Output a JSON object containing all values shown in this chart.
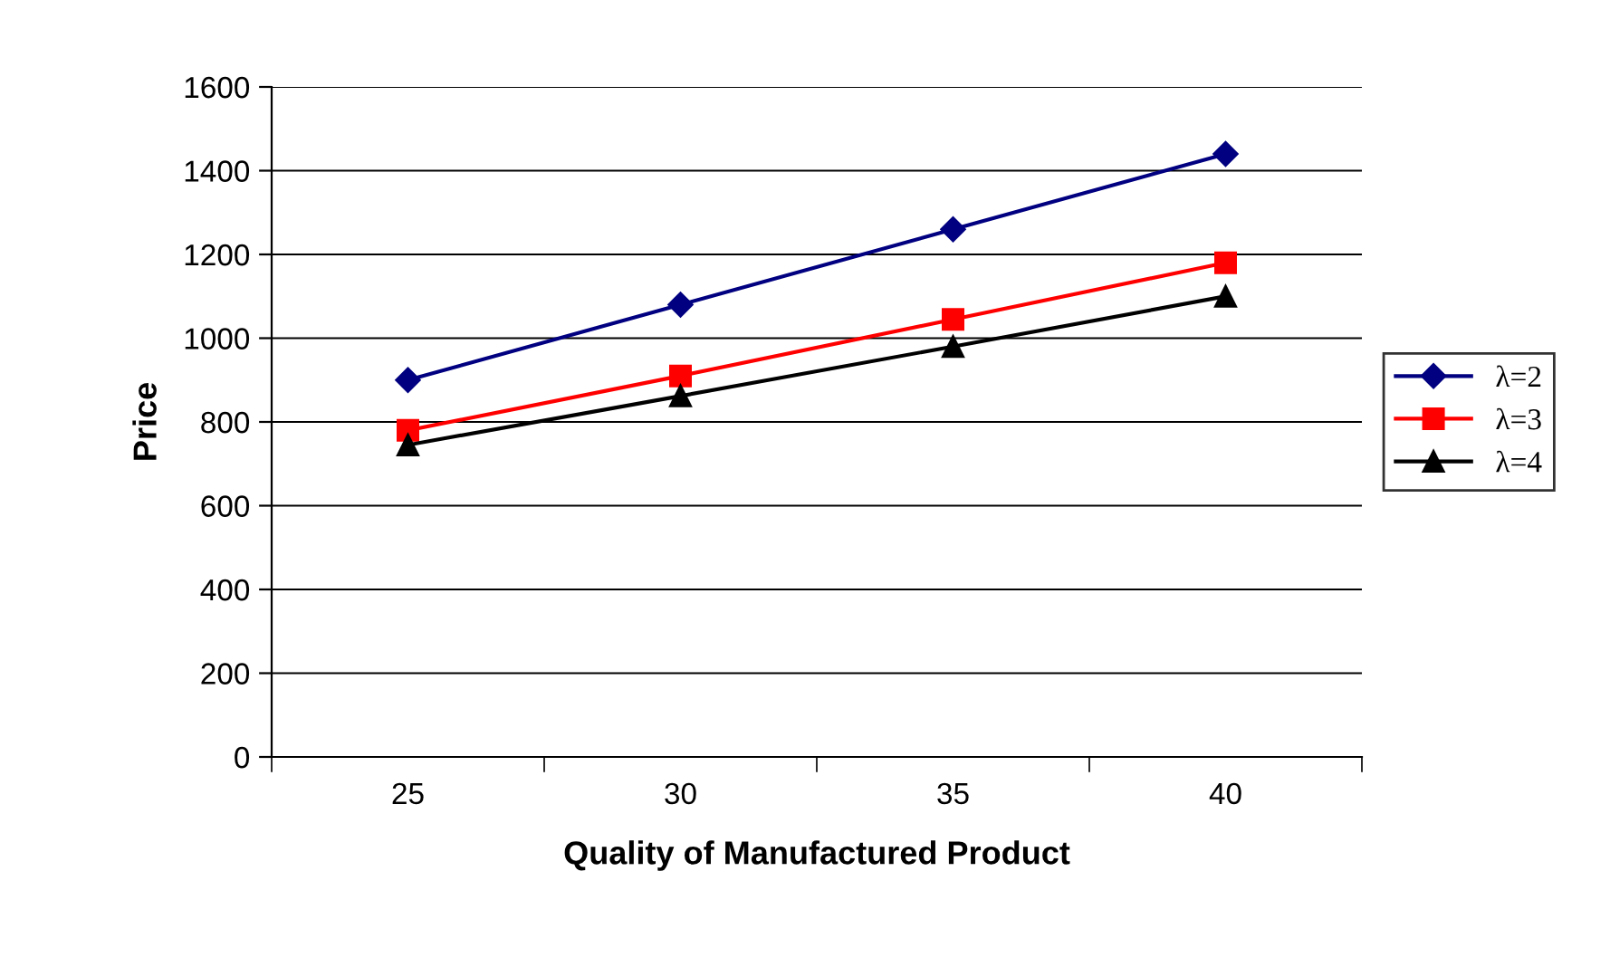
{
  "chart_data": {
    "type": "line",
    "xlabel": "Quality of Manufactured Product",
    "ylabel": "Price",
    "categories": [
      "25",
      "30",
      "35",
      "40"
    ],
    "series": [
      {
        "name": "λ=2",
        "color": "#000080",
        "marker": "diamond",
        "values": [
          900,
          1080,
          1260,
          1440
        ]
      },
      {
        "name": "λ=3",
        "color": "#ff0000",
        "marker": "square",
        "values": [
          780,
          910,
          1045,
          1180
        ]
      },
      {
        "name": "λ=4",
        "color": "#000000",
        "marker": "triangle",
        "values": [
          745,
          862,
          980,
          1100
        ]
      }
    ],
    "ylim": [
      0,
      1600
    ],
    "yticks": [
      0,
      200,
      400,
      600,
      800,
      1000,
      1200,
      1400,
      1600
    ],
    "grid": "y",
    "legend": "right",
    "line_style": "solid"
  }
}
